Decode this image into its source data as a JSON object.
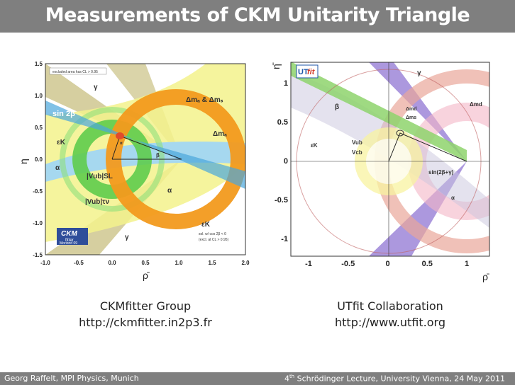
{
  "slide": {
    "title": "Measurements of CKM Unitarity Triangle"
  },
  "left_figure": {
    "caption_line1": "CKMfitter Group",
    "caption_line2": "http://ckmfitter.in2p3.fr",
    "legend_box": "excluded area has CL > 0.95",
    "logo_text": "CKM",
    "logo_sub": "fitter",
    "logo_tag": "Moriond 09",
    "note_line1": "sol. w/ cos 2β < 0",
    "note_line2": "(excl. at CL > 0.95)",
    "x_title": "ρ̄",
    "y_title": "η̄",
    "x_ticks": [
      "-1.0",
      "-0.5",
      "0.0",
      "0.5",
      "1.0",
      "1.5",
      "2.0"
    ],
    "y_ticks": [
      "1.5",
      "1.0",
      "0.5",
      "0.0",
      "-0.5",
      "-1.0",
      "-1.5"
    ],
    "labels": {
      "dmd_dms": "Δmₐ & Δmₛ",
      "dmd": "Δmₐ",
      "sin2b": "sin 2β",
      "epsk": "εK",
      "epsk2": "εK",
      "alpha": "α",
      "alpha2": "α",
      "alpha3": "α",
      "gamma": "γ",
      "gamma2": "γ",
      "beta": "β",
      "vub_sl": "|Vub|SL",
      "vub_tv": "|Vub|τν"
    }
  },
  "right_figure": {
    "caption_line1": "UTfit Collaboration",
    "caption_line2": "http://www.utfit.org",
    "logo_ut": "UT",
    "logo_fit": "fit",
    "x_title": "ρ̄",
    "y_title": "η̄",
    "x_ticks": [
      "-1",
      "-0.5",
      "0",
      "0.5",
      "1"
    ],
    "y_ticks": [
      "1",
      "0.5",
      "0",
      "-0.5",
      "-1"
    ],
    "labels": {
      "gamma": "γ",
      "beta": "β",
      "dmd": "Δmd",
      "dmd_dms_top": "Δmd",
      "dmd_dms_bot": "Δms",
      "dmd2": "Δmd",
      "epsk": "εK",
      "vub": "Vub",
      "vcb": "Vcb",
      "sin2bg": "sin(2β+γ)",
      "alpha": "α"
    }
  },
  "footer": {
    "left": "Georg Raffelt, MPI Physics, Munich",
    "right_num": "4",
    "right_sup": "th",
    "right_rest": " Schrödinger Lecture, University Vienna, 24 May 2011"
  }
}
